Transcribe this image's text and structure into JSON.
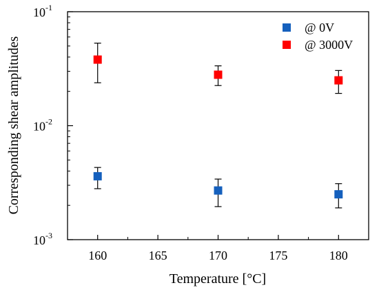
{
  "chart_data": {
    "type": "scatter",
    "xlabel": "Temperature [°C]",
    "ylabel": "Corresponding shear amplitudes",
    "xlim": [
      157.5,
      182.5
    ],
    "ylim": [
      0.001,
      0.1
    ],
    "yscale": "log",
    "x_ticks": [
      160,
      165,
      170,
      175,
      180
    ],
    "x_tick_labels": [
      "160",
      "165",
      "170",
      "175",
      "180"
    ],
    "y_ticks": [
      {
        "value": 0.1,
        "base": "10",
        "exp": "-1"
      },
      {
        "value": 0.01,
        "base": "10",
        "exp": "-2"
      },
      {
        "value": 0.001,
        "base": "10",
        "exp": "-3"
      }
    ],
    "grid": false,
    "legend_position": "top-right",
    "series": [
      {
        "name": "@ 0V",
        "color": "#1560bd",
        "marker": "square",
        "x": [
          160,
          170,
          180
        ],
        "y": [
          0.0036,
          0.0027,
          0.0025
        ],
        "y_err_low": [
          0.0028,
          0.00195,
          0.0019
        ],
        "y_err_high": [
          0.0043,
          0.0034,
          0.0031
        ]
      },
      {
        "name": "@ 3000V",
        "color": "#ff0000",
        "marker": "square",
        "x": [
          160,
          170,
          180
        ],
        "y": [
          0.038,
          0.028,
          0.025
        ],
        "y_err_low": [
          0.0238,
          0.0225,
          0.0192
        ],
        "y_err_high": [
          0.053,
          0.0335,
          0.0305
        ]
      }
    ]
  }
}
